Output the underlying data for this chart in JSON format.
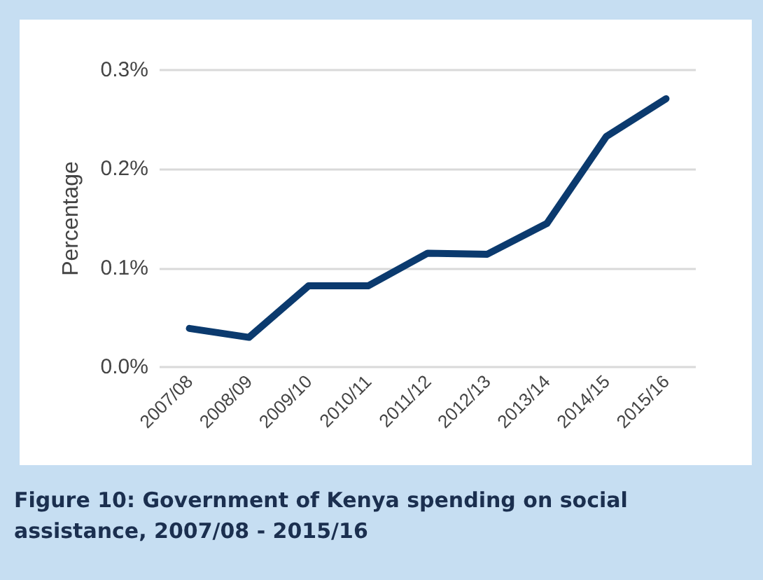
{
  "chart_data": {
    "type": "line",
    "title": "Figure 10: Government of Kenya spending on social assistance, 2007/08 - 2015/16",
    "ylabel": "Percentage",
    "categories": [
      "2007/08",
      "2008/09",
      "2009/10",
      "2010/11",
      "2011/12",
      "2012/13",
      "2013/14",
      "2014/15",
      "2015/16"
    ],
    "series": [
      {
        "color": "#0b3a6e",
        "values": [
          0.039,
          0.03,
          0.082,
          0.082,
          0.115,
          0.114,
          0.145,
          0.233,
          0.271
        ]
      }
    ],
    "ylim": [
      0,
      0.3
    ],
    "yticks": [
      {
        "value": 0,
        "label": "0.0%"
      },
      {
        "value": 0.1,
        "label": "0.1%"
      },
      {
        "value": 0.2,
        "label": "0.2%"
      },
      {
        "value": 0.3,
        "label": "0.3%"
      }
    ],
    "grid": "y",
    "marker": "none",
    "line_style": "solid"
  }
}
